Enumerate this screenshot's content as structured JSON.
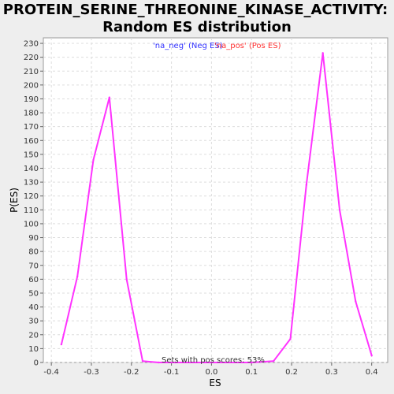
{
  "chart_data": {
    "type": "line",
    "title_line1": "PROTEIN_SERINE_THREONINE_KINASE_ACTIVITY:",
    "title_line2": "Random ES distribution",
    "xlabel": "ES",
    "ylabel": "P(ES)",
    "xlim": [
      -0.42,
      0.44
    ],
    "ylim": [
      0,
      234
    ],
    "x_ticks": [
      -0.4,
      -0.3,
      -0.2,
      -0.1,
      0.0,
      0.1,
      0.2,
      0.3,
      0.4
    ],
    "x_tick_labels": [
      "-0.4",
      "-0.3",
      "-0.2",
      "-0.1",
      "0.0",
      "0.1",
      "0.2",
      "0.3",
      "0.4"
    ],
    "y_ticks": [
      0,
      10,
      20,
      30,
      40,
      50,
      60,
      70,
      80,
      90,
      100,
      110,
      120,
      130,
      140,
      150,
      160,
      170,
      180,
      190,
      200,
      210,
      220,
      230
    ],
    "grid": true,
    "legend_position": "top-center",
    "legend": [
      {
        "label": "'na_neg' (Neg ES)",
        "color": "#3333ff"
      },
      {
        "label": "'na_pos' (Pos ES)",
        "color": "#ff3333"
      }
    ],
    "annotation": "Sets with pos scores: 53%",
    "series": [
      {
        "color": "#ff33ff",
        "x": [
          -0.375,
          -0.335,
          -0.295,
          -0.255,
          -0.212,
          -0.172,
          -0.132,
          -0.09,
          0.0,
          0.1,
          0.155,
          0.197,
          0.237,
          0.278,
          0.32,
          0.36,
          0.4
        ],
        "y": [
          13,
          62,
          146,
          191,
          60,
          1,
          0,
          0,
          0,
          0,
          1,
          17,
          128,
          223,
          110,
          44,
          5
        ]
      }
    ]
  }
}
